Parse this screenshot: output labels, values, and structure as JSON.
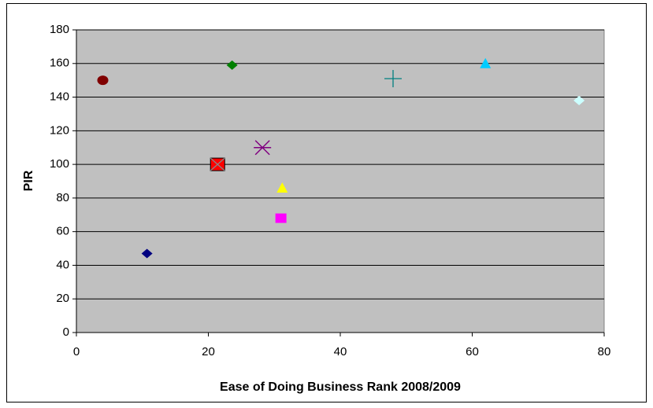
{
  "chart_data": {
    "type": "scatter",
    "x_label": "Ease of Doing Business Rank 2008/2009",
    "y_label": "PIR",
    "xlim": [
      0,
      80
    ],
    "xticks": [
      0,
      20,
      40,
      60,
      80
    ],
    "ylim": [
      0,
      180
    ],
    "yticks": [
      0,
      20,
      40,
      60,
      80,
      100,
      120,
      140,
      160,
      180
    ],
    "grid": true,
    "series": [
      {
        "color": "#800000",
        "marker": "circle",
        "x": [
          4
        ],
        "values": [
          150
        ]
      },
      {
        "color": "#000080",
        "marker": "diamond",
        "x": [
          10.7
        ],
        "values": [
          47
        ]
      },
      {
        "color": "#ff0000",
        "marker": "x-square",
        "x": [
          21.4
        ],
        "values": [
          100
        ]
      },
      {
        "color": "#008000",
        "marker": "diamond",
        "x": [
          23.6
        ],
        "values": [
          159
        ]
      },
      {
        "color": "#800080",
        "marker": "star",
        "x": [
          28.2
        ],
        "values": [
          110
        ]
      },
      {
        "color": "#ff00ff",
        "marker": "square",
        "x": [
          31
        ],
        "values": [
          68
        ]
      },
      {
        "color": "#ffff00",
        "marker": "triangle",
        "x": [
          31.2
        ],
        "values": [
          86
        ]
      },
      {
        "color": "#008080",
        "marker": "plus",
        "x": [
          48
        ],
        "values": [
          151
        ]
      },
      {
        "color": "#00ccff",
        "marker": "triangle",
        "x": [
          62
        ],
        "values": [
          160
        ]
      },
      {
        "color": "#ccffff",
        "marker": "diamond",
        "x": [
          76.2
        ],
        "values": [
          138
        ]
      }
    ]
  }
}
